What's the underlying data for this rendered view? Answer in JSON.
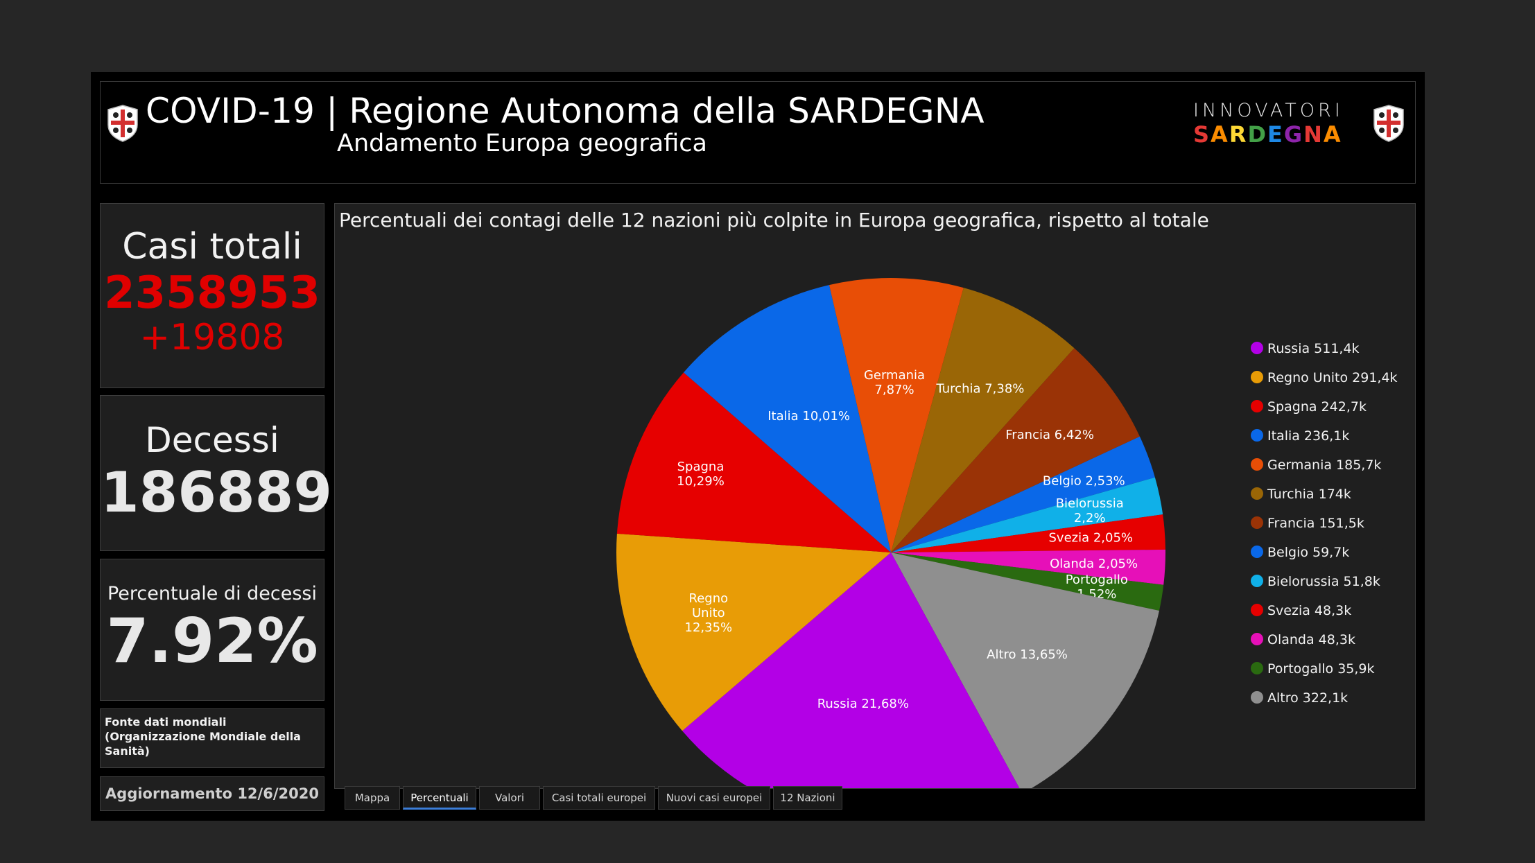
{
  "header": {
    "title": "COVID-19 | Regione Autonoma della SARDEGNA",
    "subtitle": "Andamento Europa geografica",
    "brand_top": "INNOVATORI",
    "brand_bottom_letters": [
      {
        "ch": "S",
        "color": "#e53935"
      },
      {
        "ch": "A",
        "color": "#fb8c00"
      },
      {
        "ch": "R",
        "color": "#fdd835"
      },
      {
        "ch": "D",
        "color": "#43a047"
      },
      {
        "ch": "E",
        "color": "#1e88e5"
      },
      {
        "ch": "G",
        "color": "#8e24aa"
      },
      {
        "ch": "N",
        "color": "#e53935"
      },
      {
        "ch": "A",
        "color": "#fb8c00"
      }
    ]
  },
  "kpis": {
    "total_label": "Casi totali",
    "total_value": "2358953",
    "total_delta": "+19808",
    "deaths_label": "Decessi",
    "deaths_value": "186889",
    "pct_label": "Percentuale di decessi",
    "pct_value": "7.92%"
  },
  "source": "Fonte dati mondiali (Organizzazione Mondiale della Sanità)",
  "update": "Aggiornamento 12/6/2020",
  "tabs": [
    {
      "label": "Mappa",
      "active": false
    },
    {
      "label": "Percentuali",
      "active": true
    },
    {
      "label": "Valori",
      "active": false
    },
    {
      "label": "Casi totali europei",
      "active": false
    },
    {
      "label": "Nuovi casi europei",
      "active": false
    },
    {
      "label": "12 Nazioni",
      "active": false
    }
  ],
  "chart_data": {
    "type": "pie",
    "title": "Percentuali dei contagi delle 12 nazioni più colpite in Europa geografica, rispetto al totale",
    "legend_position": "right",
    "slices": [
      {
        "name": "Russia",
        "value": 511.4,
        "legend": "Russia 511,4k",
        "label": [
          "Russia 21,68%"
        ],
        "color": "#b300e6"
      },
      {
        "name": "Regno Unito",
        "value": 291.4,
        "legend": "Regno Unito 291,4k",
        "label": [
          "Regno",
          "Unito",
          "12,35%"
        ],
        "color": "#e89c06"
      },
      {
        "name": "Spagna",
        "value": 242.7,
        "legend": "Spagna 242,7k",
        "label": [
          "Spagna",
          "10,29%"
        ],
        "color": "#e60000"
      },
      {
        "name": "Italia",
        "value": 236.1,
        "legend": "Italia 236,1k",
        "label": [
          "Italia 10,01%"
        ],
        "color": "#0a68e8"
      },
      {
        "name": "Germania",
        "value": 185.7,
        "legend": "Germania 185,7k",
        "label": [
          "Germania",
          "7,87%"
        ],
        "color": "#e84e06"
      },
      {
        "name": "Turchia",
        "value": 174,
        "legend": "Turchia 174k",
        "label": [
          "Turchia 7,38%"
        ],
        "color": "#9a6606"
      },
      {
        "name": "Francia",
        "value": 151.5,
        "legend": "Francia 151,5k",
        "label": [
          "Francia 6,42%"
        ],
        "color": "#9a3306"
      },
      {
        "name": "Belgio",
        "value": 59.7,
        "legend": "Belgio 59,7k",
        "label": [
          "Belgio 2,53%"
        ],
        "color": "#0a68e8"
      },
      {
        "name": "Bielorussia",
        "value": 51.8,
        "legend": "Bielorussia 51,8k",
        "label": [
          "Bielorussia",
          "2,2%"
        ],
        "color": "#10b0e8"
      },
      {
        "name": "Svezia",
        "value": 48.3,
        "legend": "Svezia 48,3k",
        "label": [
          "Svezia 2,05%"
        ],
        "color": "#e60000"
      },
      {
        "name": "Olanda",
        "value": 48.3,
        "legend": "Olanda 48,3k",
        "label": [
          "Olanda 2,05%"
        ],
        "color": "#e610b8"
      },
      {
        "name": "Portogallo",
        "value": 35.9,
        "legend": "Portogallo 35,9k",
        "label": [
          "Portogallo",
          "1,52%"
        ],
        "color": "#2a6a10"
      },
      {
        "name": "Altro",
        "value": 322.1,
        "legend": "Altro 322,1k",
        "label": [
          "Altro 13,65%"
        ],
        "color": "#8f8f8f"
      }
    ]
  }
}
